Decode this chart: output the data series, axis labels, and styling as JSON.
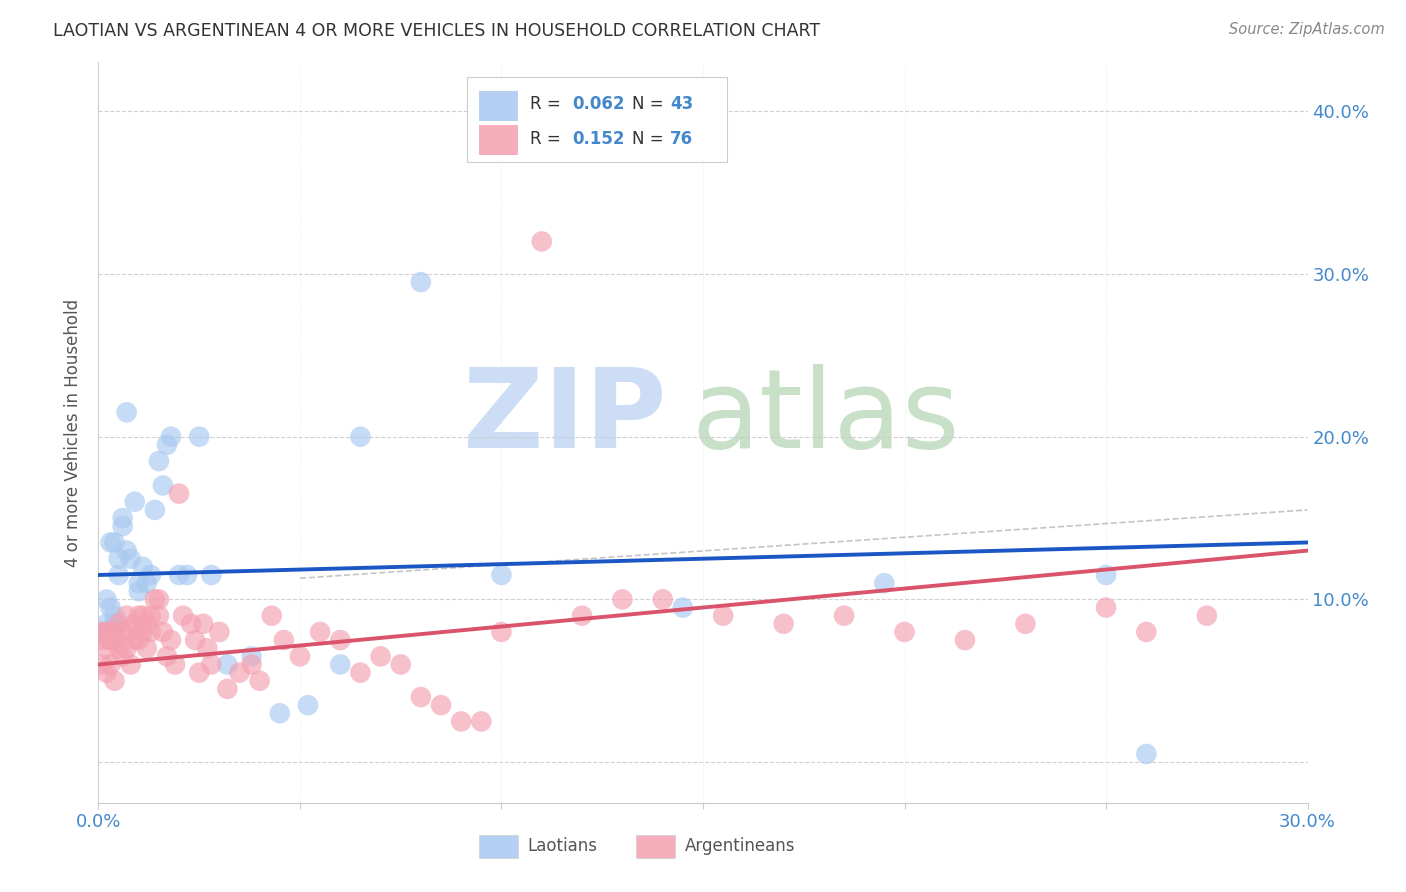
{
  "title": "LAOTIAN VS ARGENTINEAN 4 OR MORE VEHICLES IN HOUSEHOLD CORRELATION CHART",
  "source": "Source: ZipAtlas.com",
  "ylabel": "4 or more Vehicles in Household",
  "xlim": [
    0.0,
    0.3
  ],
  "ylim": [
    -0.025,
    0.43
  ],
  "xtick_positions": [
    0.0,
    0.05,
    0.1,
    0.15,
    0.2,
    0.25,
    0.3
  ],
  "xtick_labels": [
    "0.0%",
    "",
    "",
    "",
    "",
    "",
    "30.0%"
  ],
  "ytick_positions": [
    0.0,
    0.1,
    0.2,
    0.3,
    0.4
  ],
  "ytick_labels_right": [
    "",
    "10.0%",
    "20.0%",
    "30.0%",
    "40.0%"
  ],
  "legend_labels": [
    "Laotians",
    "Argentineans"
  ],
  "R_laotian": "0.062",
  "N_laotian": "43",
  "R_argentinean": "0.152",
  "N_argentinean": "76",
  "laotian_color": "#a8c8f0",
  "argentinean_color": "#f4a0b0",
  "laotian_line_color": "#1a56c4",
  "argentinean_line_color": "#d9536a",
  "dashed_line_color": "#ccaaaa",
  "tick_label_color": "#4488cc",
  "title_color": "#333333",
  "source_color": "#888888",
  "ylabel_color": "#555555",
  "legend_text_color": "#333333",
  "legend_value_color": "#4488cc",
  "watermark_zip_color": "#ccddf5",
  "watermark_atlas_color": "#c8dfc8",
  "lao_x": [
    0.001,
    0.002,
    0.003,
    0.003,
    0.004,
    0.004,
    0.005,
    0.005,
    0.006,
    0.006,
    0.007,
    0.007,
    0.008,
    0.009,
    0.01,
    0.01,
    0.011,
    0.012,
    0.013,
    0.014,
    0.015,
    0.016,
    0.017,
    0.018,
    0.02,
    0.022,
    0.025,
    0.028,
    0.032,
    0.038,
    0.045,
    0.052,
    0.06,
    0.065,
    0.08,
    0.1,
    0.145,
    0.195,
    0.25,
    0.26,
    0.002,
    0.003,
    0.004
  ],
  "lao_y": [
    0.08,
    0.1,
    0.095,
    0.075,
    0.09,
    0.085,
    0.115,
    0.125,
    0.145,
    0.15,
    0.13,
    0.215,
    0.125,
    0.16,
    0.11,
    0.105,
    0.12,
    0.11,
    0.115,
    0.155,
    0.185,
    0.17,
    0.195,
    0.2,
    0.115,
    0.115,
    0.2,
    0.115,
    0.06,
    0.065,
    0.03,
    0.035,
    0.06,
    0.2,
    0.295,
    0.115,
    0.095,
    0.11,
    0.115,
    0.005,
    0.085,
    0.135,
    0.135
  ],
  "arg_x": [
    0.001,
    0.001,
    0.001,
    0.002,
    0.002,
    0.002,
    0.003,
    0.003,
    0.003,
    0.004,
    0.004,
    0.004,
    0.005,
    0.005,
    0.006,
    0.006,
    0.007,
    0.007,
    0.008,
    0.008,
    0.009,
    0.009,
    0.01,
    0.01,
    0.011,
    0.011,
    0.012,
    0.012,
    0.013,
    0.013,
    0.014,
    0.015,
    0.015,
    0.016,
    0.017,
    0.018,
    0.019,
    0.02,
    0.021,
    0.023,
    0.024,
    0.025,
    0.026,
    0.027,
    0.028,
    0.03,
    0.032,
    0.035,
    0.038,
    0.04,
    0.043,
    0.046,
    0.05,
    0.055,
    0.06,
    0.065,
    0.07,
    0.075,
    0.08,
    0.085,
    0.09,
    0.095,
    0.1,
    0.11,
    0.12,
    0.13,
    0.14,
    0.155,
    0.17,
    0.185,
    0.2,
    0.215,
    0.23,
    0.25,
    0.26,
    0.275
  ],
  "arg_y": [
    0.075,
    0.08,
    0.06,
    0.08,
    0.07,
    0.055,
    0.075,
    0.08,
    0.06,
    0.08,
    0.075,
    0.05,
    0.085,
    0.07,
    0.08,
    0.065,
    0.09,
    0.07,
    0.08,
    0.06,
    0.085,
    0.075,
    0.09,
    0.075,
    0.09,
    0.08,
    0.085,
    0.07,
    0.09,
    0.08,
    0.1,
    0.1,
    0.09,
    0.08,
    0.065,
    0.075,
    0.06,
    0.165,
    0.09,
    0.085,
    0.075,
    0.055,
    0.085,
    0.07,
    0.06,
    0.08,
    0.045,
    0.055,
    0.06,
    0.05,
    0.09,
    0.075,
    0.065,
    0.08,
    0.075,
    0.055,
    0.065,
    0.06,
    0.04,
    0.035,
    0.025,
    0.025,
    0.08,
    0.32,
    0.09,
    0.1,
    0.1,
    0.09,
    0.085,
    0.09,
    0.08,
    0.075,
    0.085,
    0.095,
    0.08,
    0.09
  ]
}
